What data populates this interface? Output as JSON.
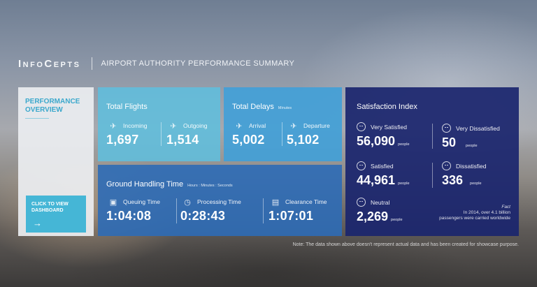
{
  "header": {
    "logo": "InfoCepts",
    "title": "AIRPORT AUTHORITY PERFORMANCE SUMMARY"
  },
  "overview": {
    "title": "PERFORMANCE OVERVIEW",
    "cta_label": "CLICK TO VIEW DASHBOARD",
    "cta_icon": "arrow-right-icon"
  },
  "flights": {
    "title": "Total Flights",
    "incoming": {
      "label": "Incoming",
      "value": "1,697",
      "icon": "airplane-landing-icon"
    },
    "outgoing": {
      "label": "Outgoing",
      "value": "1,514",
      "icon": "airplane-takeoff-icon"
    }
  },
  "delays": {
    "title": "Total Delays",
    "unit": "Minutes",
    "arrival": {
      "label": "Arrival",
      "value": "5,002",
      "icon": "airplane-landing-icon"
    },
    "departure": {
      "label": "Departure",
      "value": "5,102",
      "icon": "airplane-takeoff-icon"
    }
  },
  "ground": {
    "title": "Ground Handling Time",
    "unit": "Hours : Minutes : Seconds",
    "queuing": {
      "label": "Queuing Time",
      "value": "1:04:08",
      "icon": "luggage-icon"
    },
    "processing": {
      "label": "Processing Time",
      "value": "0:28:43",
      "icon": "stopwatch-icon"
    },
    "clearance": {
      "label": "Clearance Time",
      "value": "1:07:01",
      "icon": "document-icon"
    }
  },
  "satisfaction": {
    "title": "Satisfaction Index",
    "unit": "people",
    "very_satisfied": {
      "label": "Very Satisfied",
      "value": "56,090"
    },
    "very_dissatisfied": {
      "label": "Very Dissatisfied",
      "value": "50"
    },
    "satisfied": {
      "label": "Satisfied",
      "value": "44,961"
    },
    "dissatisfied": {
      "label": "Dissatisfied",
      "value": "336"
    },
    "neutral": {
      "label": "Neutral",
      "value": "2,269"
    },
    "fact_heading": "Fact",
    "fact_line1": "In 2014, over 4.1 billion",
    "fact_line2": "passengers were carried worldwide"
  },
  "note": "Note: The data shown above doesn't represent actual data and has been created for showcase purpose.",
  "colors": {
    "flights_panel": "#60bedd",
    "delays_panel": "#40a0d8",
    "ground_panel": "#2d6cb6",
    "satisfaction_panel": "#1a256e",
    "accent": "#3ba8cc"
  }
}
